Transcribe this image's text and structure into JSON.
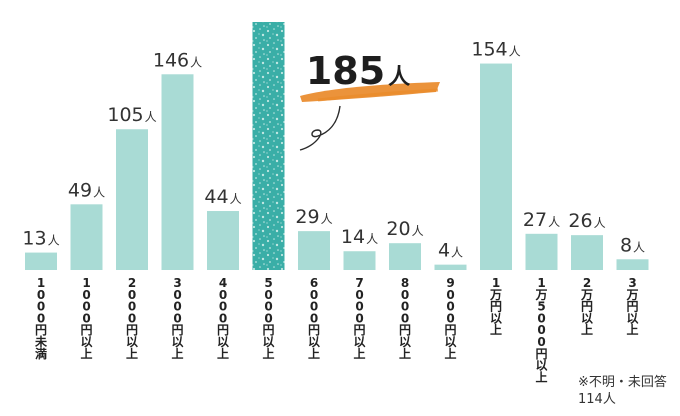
{
  "chart_data": {
    "type": "bar",
    "title": "",
    "xlabel": "",
    "ylabel": "",
    "unit": "人",
    "ylim": [
      0,
      185
    ],
    "highlight_index": 5,
    "colors": {
      "bar": "#a9dbd5",
      "highlight": "#3aaea7",
      "brush": "#e98a2a",
      "text": "#333333"
    },
    "categories": [
      "1000円未満",
      "1000円以上",
      "2000円以上",
      "3000円以上",
      "4000円以上",
      "5000円以上",
      "6000円以上",
      "7000円以上",
      "8000円以上",
      "9000円以上",
      "1万円以上",
      "1万5000円以上",
      "2万円以上",
      "3万円以上"
    ],
    "values": [
      13,
      49,
      105,
      146,
      44,
      185,
      29,
      14,
      20,
      4,
      154,
      27,
      26,
      8
    ]
  },
  "note": {
    "line1": "※不明・未回答",
    "line2": "114人"
  }
}
